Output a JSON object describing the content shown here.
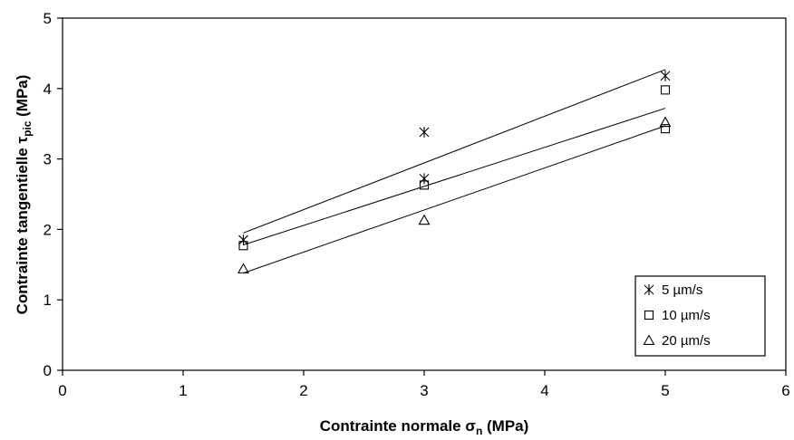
{
  "chart_data": {
    "type": "scatter",
    "xlabel": {
      "main": "Contrainte normale σ",
      "sub": "n",
      "unit": " (MPa)"
    },
    "ylabel": {
      "main": "Contrainte tangentielle τ",
      "sub": "pic",
      "unit": " (MPa)"
    },
    "xlim": [
      0,
      6
    ],
    "ylim": [
      0,
      5
    ],
    "xticks": [
      "0",
      "1",
      "2",
      "3",
      "4",
      "5",
      "6"
    ],
    "yticks": [
      "0",
      "1",
      "2",
      "3",
      "4",
      "5"
    ],
    "grid": false,
    "legend_position": "bottom-right",
    "series": [
      {
        "name": "5 µm/s",
        "marker": "star",
        "x": [
          1.5,
          3,
          3,
          5
        ],
        "y": [
          1.85,
          3.38,
          2.72,
          4.18
        ],
        "fit": [
          [
            1.5,
            1.95
          ],
          [
            5,
            4.27
          ]
        ]
      },
      {
        "name": "10 µm/s",
        "marker": "square",
        "x": [
          1.5,
          3,
          5,
          5
        ],
        "y": [
          1.77,
          2.63,
          3.98,
          3.43
        ],
        "fit": [
          [
            1.5,
            1.78
          ],
          [
            5,
            3.72
          ]
        ]
      },
      {
        "name": "20 µm/s",
        "marker": "triangle",
        "x": [
          1.5,
          3,
          5
        ],
        "y": [
          1.44,
          2.13,
          3.52
        ],
        "fit": [
          [
            1.5,
            1.38
          ],
          [
            5,
            3.47
          ]
        ]
      }
    ]
  }
}
